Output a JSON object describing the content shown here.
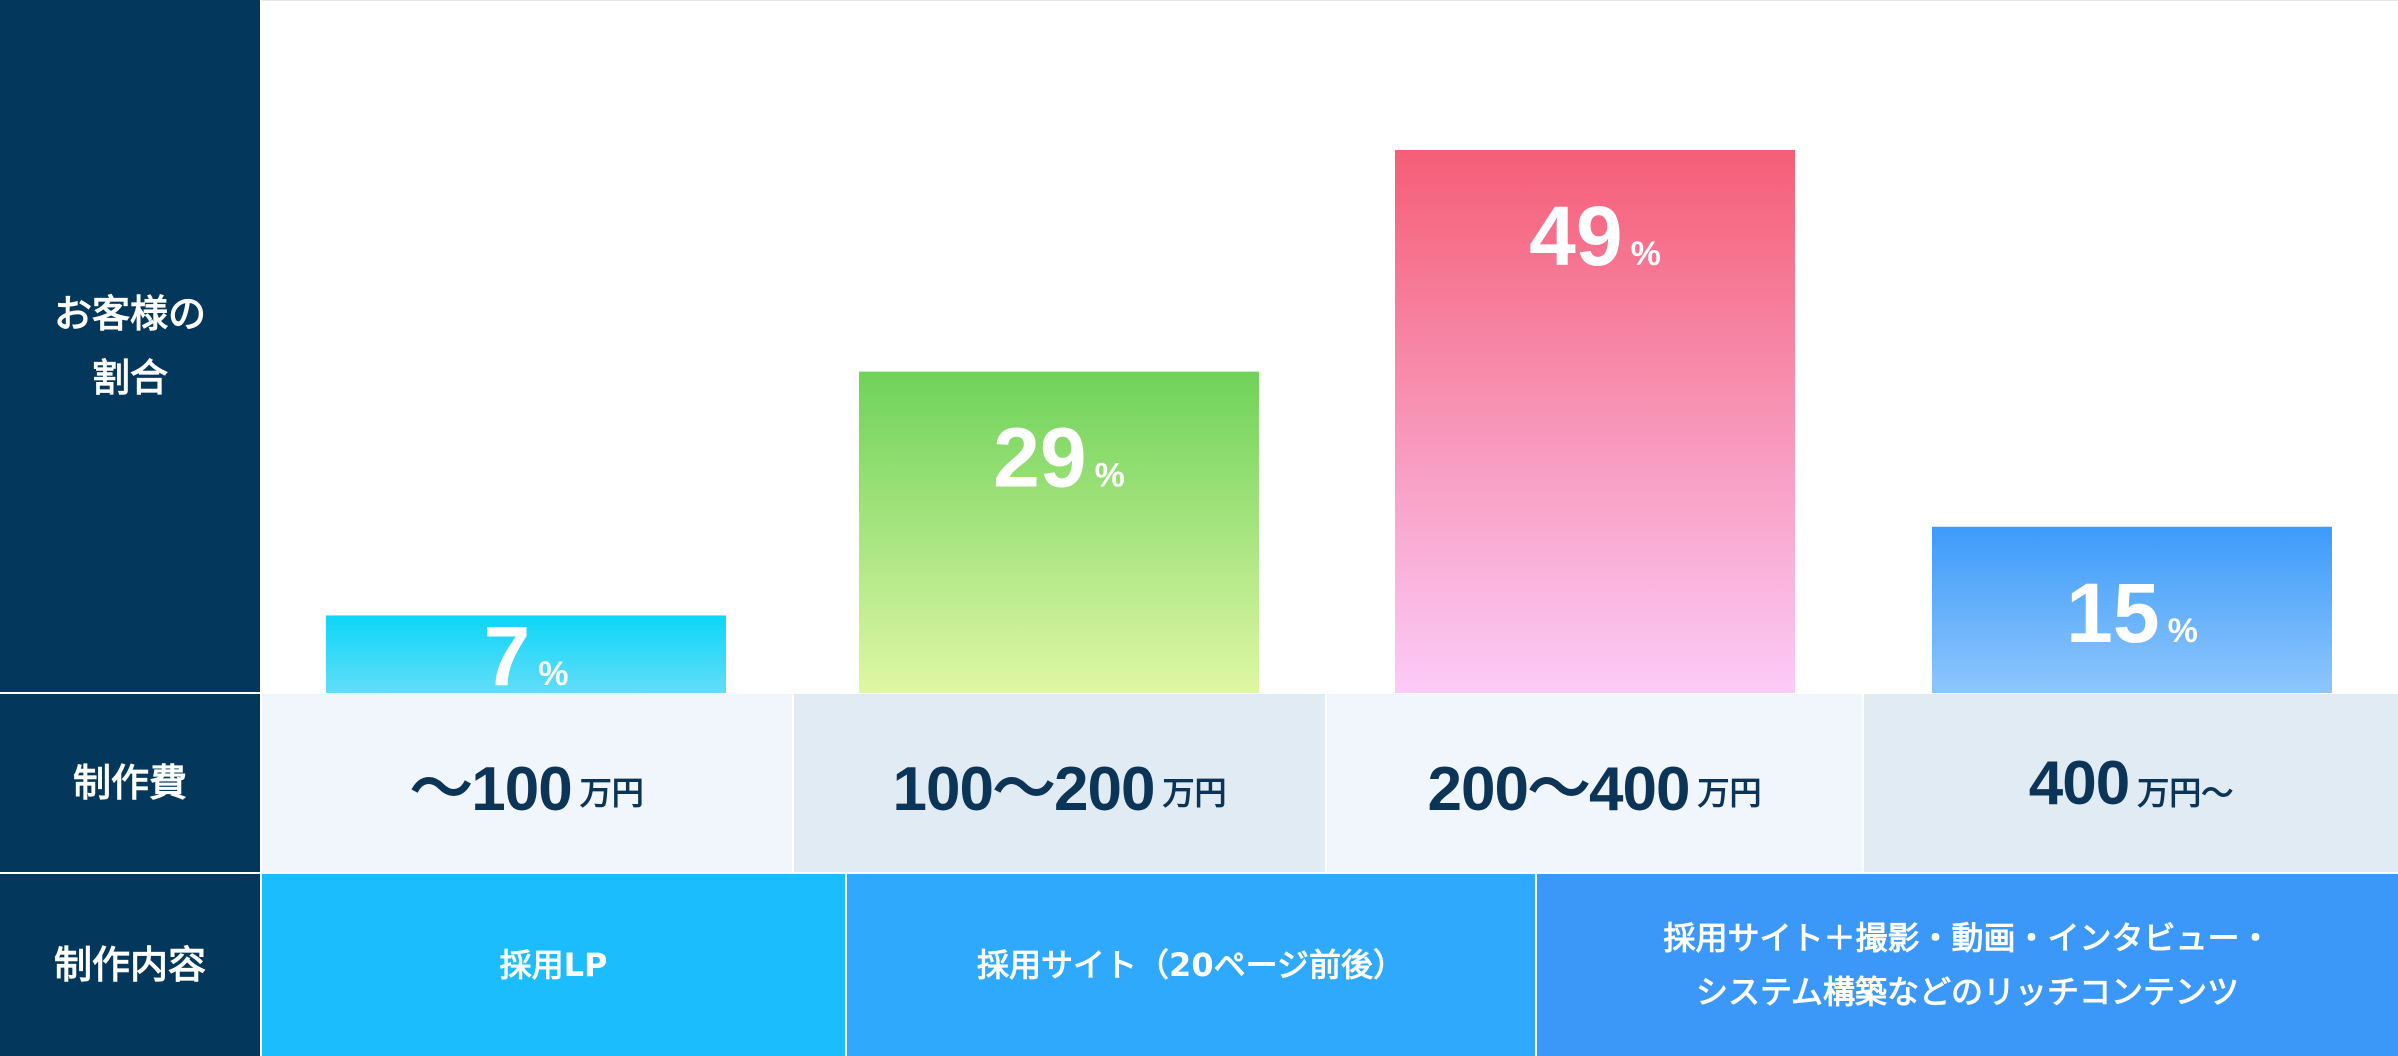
{
  "headers": {
    "ratio_line1": "お客様の",
    "ratio_line2": "割合",
    "cost": "制作費",
    "content": "制作内容"
  },
  "chart_data": {
    "type": "bar",
    "categories": [
      "〜100万円",
      "100〜200万円",
      "200〜400万円",
      "400万円〜"
    ],
    "values": [
      7,
      29,
      49,
      15
    ],
    "value_suffix": "%",
    "ylim": [
      0,
      60
    ],
    "colors": [
      [
        "#0cd6f8",
        "#62ddf8"
      ],
      [
        "#6fd25a",
        "#dff7a5"
      ],
      [
        "#f55e76",
        "#fbcbf8"
      ],
      [
        "#3d9bfa",
        "#8ec6fc"
      ]
    ]
  },
  "costs": [
    {
      "num": "〜100",
      "unit": "万円"
    },
    {
      "num": "100〜200",
      "unit": "万円"
    },
    {
      "num": "200〜400",
      "unit": "万円"
    },
    {
      "num": "400",
      "unit": "万円〜"
    }
  ],
  "contents": {
    "c1": "採用LP",
    "c2": "採用サイト（20ページ前後）",
    "c3_line1": "採用サイト＋撮影・動画・インタビュー・",
    "c3_line2": "システム構築などのリッチコンテンツ"
  }
}
